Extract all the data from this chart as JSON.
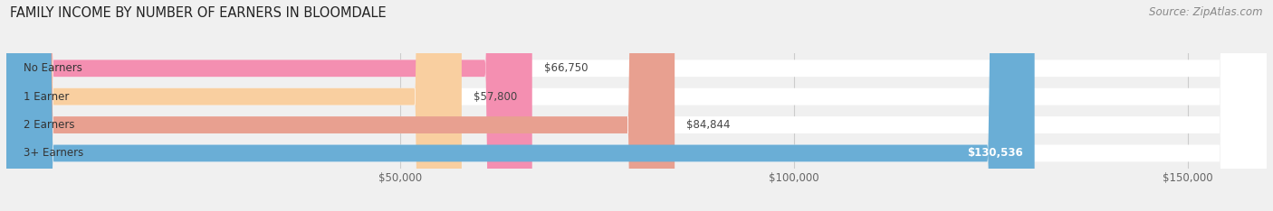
{
  "title": "FAMILY INCOME BY NUMBER OF EARNERS IN BLOOMDALE",
  "source": "Source: ZipAtlas.com",
  "categories": [
    "No Earners",
    "1 Earner",
    "2 Earners",
    "3+ Earners"
  ],
  "values": [
    66750,
    57800,
    84844,
    130536
  ],
  "bar_colors": [
    "#f48fb1",
    "#f9cfa0",
    "#e8a090",
    "#6aaed6"
  ],
  "label_values": [
    "$66,750",
    "$57,800",
    "$84,844",
    "$130,536"
  ],
  "xlim": [
    0,
    160000
  ],
  "xticks": [
    50000,
    100000,
    150000
  ],
  "xtick_labels": [
    "$50,000",
    "$100,000",
    "$150,000"
  ],
  "title_fontsize": 10.5,
  "source_fontsize": 8.5,
  "label_fontsize": 8.5,
  "tick_fontsize": 8.5,
  "bg_color": "#f0f0f0",
  "bar_bg_color": "#ffffff"
}
